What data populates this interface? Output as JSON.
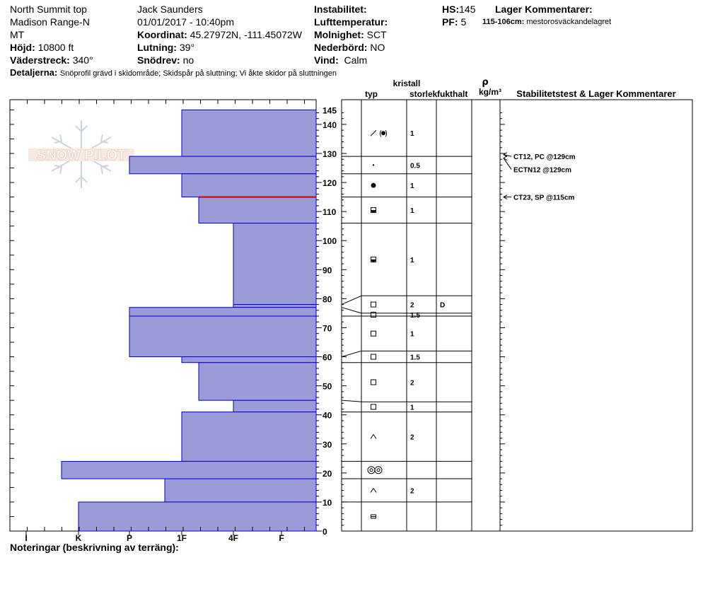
{
  "header": {
    "location": [
      "North Summit top",
      "Madison Range-N",
      "MT"
    ],
    "observer": "Jack Saunders",
    "datetime": "01/01/2017 - 10:40pm",
    "elevation_label": "Höjd:",
    "elevation": "10800 ft",
    "aspect_label": "Väderstreck:",
    "aspect": "340°",
    "coord_label": "Koordinat:",
    "coord": "45.27972N, -111.45072W",
    "slope_label": "Lutning:",
    "slope": "39°",
    "wind_loading_label": "Snödrev:",
    "wind_loading": "no",
    "instability_label": "Instabilitet:",
    "air_temp_label": "Lufttemperatur:",
    "sky_label": "Molnighet:",
    "sky": "SCT",
    "precip_label": "Nederbörd:",
    "precip": "NO",
    "wind_label": "Vind:",
    "wind": "Calm",
    "hs_label": "HS:",
    "hs": "145",
    "pf_label": "PF:",
    "pf": "5",
    "layer_comments_label": "Lager Kommentarer:",
    "layer_comment_range": "115-106cm:",
    "layer_comment_text": "mestorosväckandelagret",
    "details_label": "Detaljerna:",
    "details": "Snöprofil grävd i skidområde;  Skidspår på sluttning;  Vi åkte skidor på sluttningen"
  },
  "logo_text": "SNOW PILOT",
  "columns": {
    "crystal": "kristall",
    "type": "typ",
    "size": "storlek",
    "moisture": "fukthalt",
    "rho": "ρ",
    "density": "kg/m³",
    "stability": "Stabilitetstest & Lager Kommentarer"
  },
  "notes_label": "Noteringar (beskrivning av terräng):",
  "colors": {
    "layer_fill": "#9b9bd8",
    "layer_stroke": "#0000cc",
    "weak_layer": "#cc0000"
  },
  "chart_data": {
    "type": "bar",
    "y_axis": {
      "range": [
        0,
        145
      ],
      "ticks": [
        0,
        10,
        20,
        30,
        40,
        50,
        60,
        70,
        80,
        90,
        100,
        110,
        120,
        130,
        140,
        145
      ]
    },
    "hardness_scale": [
      "I",
      "K",
      "P",
      "1F",
      "4F",
      "F"
    ],
    "layers": [
      {
        "top": 145,
        "bottom": 129,
        "hardness": "1F",
        "type": "decomp-round",
        "size": "1",
        "moisture": ""
      },
      {
        "top": 129,
        "bottom": 123,
        "hardness": "P",
        "type": "dot",
        "size": "0.5",
        "moisture": ""
      },
      {
        "top": 123,
        "bottom": 115,
        "hardness": "1F",
        "type": "round",
        "size": "1",
        "moisture": ""
      },
      {
        "top": 115,
        "bottom": 106,
        "hardness": "1F+",
        "type": "mixed-round",
        "size": "1",
        "moisture": ""
      },
      {
        "top": 106,
        "bottom": 78,
        "hardness": "4F",
        "type": "mixed-round",
        "size": "1",
        "moisture": ""
      },
      {
        "top": 78,
        "bottom": 77,
        "hardness": "4F",
        "type": "facet",
        "size": "2",
        "moisture": "D"
      },
      {
        "top": 77,
        "bottom": 74,
        "hardness": "P",
        "type": "facet",
        "size": "1.5",
        "moisture": ""
      },
      {
        "top": 74,
        "bottom": 60,
        "hardness": "P",
        "type": "facet",
        "size": "1",
        "moisture": ""
      },
      {
        "top": 60,
        "bottom": 58,
        "hardness": "1F",
        "type": "facet",
        "size": "1.5",
        "moisture": ""
      },
      {
        "top": 58,
        "bottom": 45,
        "hardness": "1F+",
        "type": "facet",
        "size": "2",
        "moisture": ""
      },
      {
        "top": 45,
        "bottom": 41,
        "hardness": "4F",
        "type": "facet",
        "size": "1",
        "moisture": ""
      },
      {
        "top": 41,
        "bottom": 24,
        "hardness": "1F",
        "type": "depth-hoar",
        "size": "2",
        "moisture": ""
      },
      {
        "top": 24,
        "bottom": 18,
        "hardness": "K-",
        "type": "melt-freeze",
        "size": "",
        "moisture": ""
      },
      {
        "top": 18,
        "bottom": 10,
        "hardness": "1F-",
        "type": "depth-hoar",
        "size": "2",
        "moisture": ""
      },
      {
        "top": 10,
        "bottom": 0,
        "hardness": "K",
        "type": "crust",
        "size": "",
        "moisture": ""
      }
    ],
    "weak_layer_depth": 115,
    "stability_tests": [
      {
        "label": "CT12, PC @129cm",
        "depth": 129
      },
      {
        "label": "ECTN12 @129cm",
        "depth": 129
      },
      {
        "label": "CT23, SP @115cm",
        "depth": 115
      }
    ]
  }
}
